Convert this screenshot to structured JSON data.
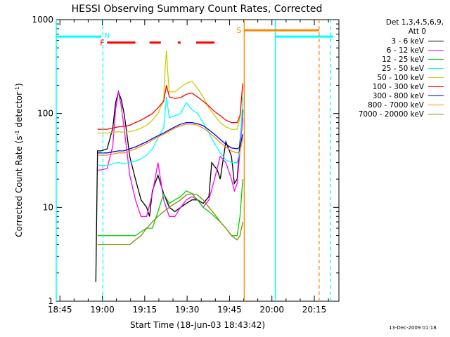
{
  "chart_data": {
    "type": "line",
    "title": "HESSI Observing Summary Count Rates, Corrected",
    "xlabel": "Start Time (18-Jun-03 18:43:42)",
    "ylabel": "Corrected Count Rate (s-1 detector-1)",
    "ylabel_parts": [
      "Corrected Count Rate (s",
      "-1",
      " detector",
      "-1",
      ")"
    ],
    "x_unit": "minutes since 18:43:42",
    "xlim": [
      0,
      100
    ],
    "ylim": [
      1,
      1000
    ],
    "yscale": "log",
    "xticks": [
      {
        "label": "18:45",
        "at": 1.3
      },
      {
        "label": "19:00",
        "at": 16.3
      },
      {
        "label": "19:15",
        "at": 31.3
      },
      {
        "label": "19:30",
        "at": 46.3
      },
      {
        "label": "19:45",
        "at": 61.3
      },
      {
        "label": "20:00",
        "at": 76.3
      },
      {
        "label": "20:15",
        "at": 91.3
      }
    ],
    "yticks": [
      {
        "label": "1",
        "at": 1
      },
      {
        "label": "10",
        "at": 10
      },
      {
        "label": "100",
        "at": 100
      },
      {
        "label": "1000",
        "at": 1000
      }
    ],
    "legend_header": [
      "Det 1,3,4,5,6,9,",
      "Att 0"
    ],
    "legend_position": "right",
    "grid": false,
    "series": [
      {
        "name": "3 - 6 keV",
        "color": "#000000",
        "x": [
          14,
          14.6,
          16,
          18,
          20,
          21,
          22,
          23,
          24,
          25,
          26,
          28,
          30,
          32,
          33,
          34,
          36,
          38,
          40,
          42,
          44,
          46,
          48,
          50,
          52,
          54,
          55,
          57,
          58,
          60,
          62,
          63,
          64,
          65,
          66
        ],
        "y": [
          1.6,
          40,
          40,
          42,
          70,
          130,
          170,
          140,
          100,
          60,
          35,
          20,
          12,
          10,
          8,
          15,
          22,
          14,
          10,
          9,
          10,
          11,
          12,
          12,
          11,
          13,
          30,
          25,
          20,
          50,
          35,
          18,
          20,
          50,
          110
        ]
      },
      {
        "name": "6 - 12 keV",
        "color": "#ff00ff",
        "x": [
          14.6,
          16,
          18,
          20,
          21,
          22,
          23,
          24,
          25,
          26,
          28,
          30,
          32,
          34,
          36,
          38,
          40,
          42,
          44,
          46,
          48,
          50,
          52,
          54,
          56,
          58,
          60,
          62,
          63,
          64,
          65,
          66
        ],
        "y": [
          25,
          25,
          26,
          45,
          110,
          170,
          120,
          70,
          40,
          22,
          12,
          8,
          8,
          14,
          30,
          12,
          8,
          8,
          10,
          12,
          13,
          12,
          10,
          12,
          20,
          35,
          30,
          20,
          15,
          18,
          40,
          90
        ]
      },
      {
        "name": "12 - 25 keV",
        "color": "#00cc00",
        "x": [
          14.6,
          20,
          25,
          28,
          30,
          32,
          34,
          36,
          38,
          40,
          42,
          44,
          46,
          48,
          50,
          52,
          54,
          56,
          58,
          60,
          62,
          64,
          65,
          66
        ],
        "y": [
          5,
          5,
          5,
          5,
          5.5,
          6,
          6,
          9,
          14,
          11,
          12,
          13,
          15,
          14,
          12,
          10,
          9,
          8,
          7,
          6,
          5,
          5,
          8,
          20
        ]
      },
      {
        "name": "25 - 50 keV",
        "color": "#00ffff",
        "x": [
          14.6,
          18,
          20,
          22,
          24,
          26,
          28,
          30,
          32,
          34,
          36,
          38,
          39,
          40,
          42,
          44,
          46,
          48,
          50,
          52,
          54,
          56,
          58,
          60,
          62,
          64,
          65,
          66
        ],
        "y": [
          28,
          28,
          29,
          30,
          29,
          30,
          31,
          33,
          36,
          42,
          55,
          70,
          150,
          90,
          95,
          100,
          130,
          110,
          100,
          80,
          62,
          48,
          38,
          32,
          30,
          30,
          40,
          150
        ]
      },
      {
        "name": "50 - 100 keV",
        "color": "#cccc00",
        "x": [
          14.6,
          18,
          20,
          22,
          24,
          26,
          28,
          30,
          32,
          34,
          36,
          38,
          38.5,
          39,
          39.5,
          40,
          42,
          44,
          46,
          48,
          50,
          52,
          54,
          56,
          58,
          60,
          62,
          64,
          65,
          66
        ],
        "y": [
          62,
          62,
          63,
          64,
          63,
          64,
          66,
          70,
          75,
          85,
          100,
          140,
          300,
          470,
          260,
          170,
          170,
          190,
          210,
          220,
          185,
          150,
          115,
          95,
          80,
          72,
          68,
          68,
          90,
          200
        ]
      },
      {
        "name": "100 - 300 keV",
        "color": "#ff0000",
        "x": [
          14.6,
          18,
          20,
          22,
          24,
          26,
          28,
          30,
          32,
          34,
          36,
          38,
          39,
          40,
          42,
          44,
          46,
          48,
          50,
          52,
          54,
          56,
          58,
          60,
          62,
          64,
          65,
          66
        ],
        "y": [
          68,
          68,
          70,
          72,
          73,
          75,
          80,
          85,
          92,
          100,
          115,
          135,
          200,
          150,
          145,
          148,
          160,
          165,
          150,
          135,
          120,
          105,
          95,
          85,
          80,
          80,
          95,
          210
        ]
      },
      {
        "name": "300 - 800 keV",
        "color": "#0000ff",
        "x": [
          14.6,
          18,
          20,
          22,
          24,
          26,
          28,
          30,
          32,
          34,
          36,
          38,
          40,
          42,
          44,
          46,
          48,
          50,
          52,
          54,
          56,
          58,
          60,
          62,
          64,
          65,
          66
        ],
        "y": [
          38,
          38,
          39,
          40,
          40,
          42,
          44,
          47,
          50,
          54,
          58,
          62,
          67,
          72,
          77,
          80,
          80,
          78,
          74,
          67,
          60,
          53,
          47,
          43,
          42,
          44,
          60
        ]
      },
      {
        "name": "800 - 7000 keV",
        "color": "#ff8800",
        "x": [
          14.6,
          18,
          20,
          22,
          24,
          26,
          28,
          30,
          32,
          34,
          36,
          38,
          40,
          42,
          44,
          46,
          48,
          50,
          52,
          54,
          56,
          58,
          60,
          62,
          64,
          65,
          66
        ],
        "y": [
          36,
          36,
          37,
          38,
          38,
          40,
          42,
          45,
          48,
          52,
          56,
          60,
          65,
          70,
          74,
          77,
          77,
          75,
          70,
          63,
          56,
          49,
          44,
          40,
          38,
          39,
          55
        ]
      },
      {
        "name": "7000 - 20000 keV",
        "color": "#888800",
        "x": [
          14.6,
          18,
          22,
          26,
          28,
          30,
          32,
          34,
          36,
          38,
          40,
          42,
          44,
          46,
          48,
          50,
          52,
          54,
          56,
          58,
          60,
          62,
          64,
          65,
          66
        ],
        "y": [
          4,
          4,
          4,
          4,
          4.5,
          5,
          6,
          7,
          8,
          9,
          10,
          11,
          12,
          13.5,
          14,
          13.5,
          12,
          10,
          8.5,
          7,
          6,
          5,
          4.5,
          5,
          7
        ]
      }
    ],
    "annotations": {
      "saa_cyan": {
        "color": "#00ffff",
        "solid_lines_x": [
          0,
          77.5
        ],
        "dashed_lines_x": [
          16.5,
          97
        ],
        "bars": [
          {
            "x": [
              0,
              16
            ],
            "y": 660
          },
          {
            "x": [
              77.5,
              98
            ],
            "y": 660
          }
        ],
        "label": "N",
        "label_at": [
          17,
          660
        ]
      },
      "flare_red": {
        "color": "#ff0000",
        "segments": [
          [
            18,
            28
          ],
          [
            33,
            37
          ],
          [
            43,
            44
          ],
          [
            49.5,
            56
          ]
        ],
        "y": 570,
        "label": "F",
        "label_at": [
          15.5,
          570
        ]
      },
      "s_orange": {
        "color": "#ff8800",
        "solid_line_x": 66.5,
        "dashed_line_x": 93,
        "bar": {
          "x": [
            66.5,
            93
          ],
          "y": 770
        },
        "label": "S",
        "label_at": [
          65.5,
          770
        ]
      }
    }
  },
  "timestamp": "13-Dec-2009 01:18"
}
